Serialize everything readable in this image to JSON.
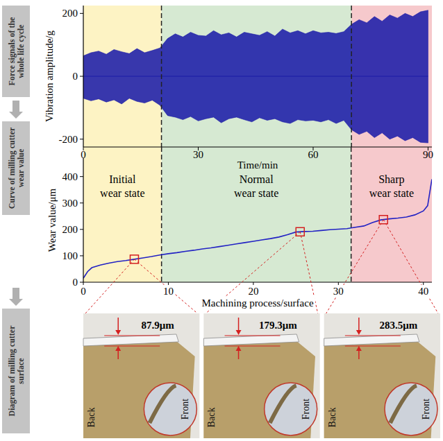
{
  "side_labels": [
    "Force signals of the whole life cycle",
    "Curve of milling cutter wear value",
    "Diagram of milling cutter surface"
  ],
  "chart_data": [
    {
      "type": "area",
      "x": [
        0,
        2,
        4,
        6,
        8,
        10,
        12,
        14,
        16,
        18,
        20,
        22,
        24,
        26,
        28,
        30,
        32,
        34,
        36,
        38,
        40,
        42,
        44,
        46,
        48,
        50,
        52,
        54,
        56,
        58,
        60,
        62,
        64,
        66,
        68,
        70,
        72,
        74,
        76,
        78,
        80,
        82,
        84,
        86,
        88,
        90
      ],
      "values": [
        65,
        75,
        80,
        70,
        85,
        78,
        72,
        88,
        75,
        82,
        90,
        120,
        135,
        125,
        140,
        130,
        128,
        145,
        132,
        138,
        125,
        140,
        135,
        130,
        142,
        128,
        150,
        138,
        145,
        135,
        145,
        138,
        140,
        136,
        142,
        165,
        180,
        170,
        190,
        175,
        195,
        185,
        200,
        190,
        205,
        210
      ],
      "lower": [
        -70,
        -78,
        -72,
        -82,
        -75,
        -88,
        -70,
        -80,
        -85,
        -76,
        -92,
        -125,
        -130,
        -138,
        -128,
        -142,
        -135,
        -130,
        -148,
        -135,
        -130,
        -138,
        -145,
        -132,
        -140,
        -135,
        -145,
        -150,
        -138,
        -142,
        -140,
        -145,
        -138,
        -150,
        -140,
        -170,
        -185,
        -175,
        -195,
        -180,
        -200,
        -190,
        -205,
        -195,
        -210,
        -212
      ],
      "xlim": [
        0,
        91
      ],
      "ylim": [
        -225,
        225
      ],
      "xticks": [
        0,
        30,
        60,
        90
      ],
      "yticks": [
        -200,
        0,
        200
      ],
      "x_label": "Time/min",
      "y_label": "Vibration amplitude/g",
      "color": "#1c1ca8",
      "regions": [
        {
          "start": 0,
          "end": 20.4,
          "color": "#fdf3c4"
        },
        {
          "start": 20.4,
          "end": 70,
          "color": "#d6e9d2"
        },
        {
          "start": 70,
          "end": 91,
          "color": "#f6c9cc"
        }
      ]
    },
    {
      "type": "line",
      "x": [
        0,
        0.5,
        1,
        2,
        3,
        4,
        5,
        6,
        7,
        8,
        9,
        10,
        11,
        12,
        13,
        14,
        15,
        16,
        17,
        18,
        19,
        20,
        21,
        22,
        23,
        24,
        25,
        26,
        27,
        28,
        29,
        30,
        31,
        32,
        33,
        34,
        35,
        36,
        37,
        38,
        39,
        40,
        40.5,
        41
      ],
      "values": [
        15,
        40,
        55,
        65,
        72,
        78,
        82,
        87,
        92,
        97,
        103,
        108,
        112,
        117,
        121,
        126,
        130,
        135,
        140,
        145,
        150,
        155,
        160,
        165,
        171,
        180,
        190,
        192,
        193,
        196,
        199,
        201,
        203,
        208,
        213,
        226,
        236,
        240,
        243,
        247,
        255,
        270,
        290,
        390
      ],
      "xlim": [
        0,
        41
      ],
      "ylim": [
        0,
        470
      ],
      "xticks": [
        0,
        10,
        20,
        30,
        40
      ],
      "yticks": [
        0,
        100,
        200,
        300,
        400
      ],
      "x_label": "Machining process/surface",
      "y_label": "Wear value/μm",
      "color": "#2222c4",
      "regions": [
        {
          "label": "Initial wear state",
          "start": 0,
          "end": 9.2,
          "color": "#fdf3c4"
        },
        {
          "label": "Normal wear state",
          "start": 9.2,
          "end": 31.5,
          "color": "#d6e9d2"
        },
        {
          "label": "Sharp wear state",
          "start": 31.5,
          "end": 41,
          "color": "#f6c9cc"
        }
      ]
    }
  ],
  "photos": [
    {
      "wear_label": "87.9μm",
      "back": "Back",
      "front": "Front",
      "point": {
        "x": 6,
        "y": 87
      }
    },
    {
      "wear_label": "179.3μm",
      "back": "Back",
      "front": "Front",
      "point": {
        "x": 25.5,
        "y": 191
      }
    },
    {
      "wear_label": "283.5μm",
      "back": "Back",
      "front": "Front",
      "point": {
        "x": 35.3,
        "y": 237
      }
    }
  ]
}
